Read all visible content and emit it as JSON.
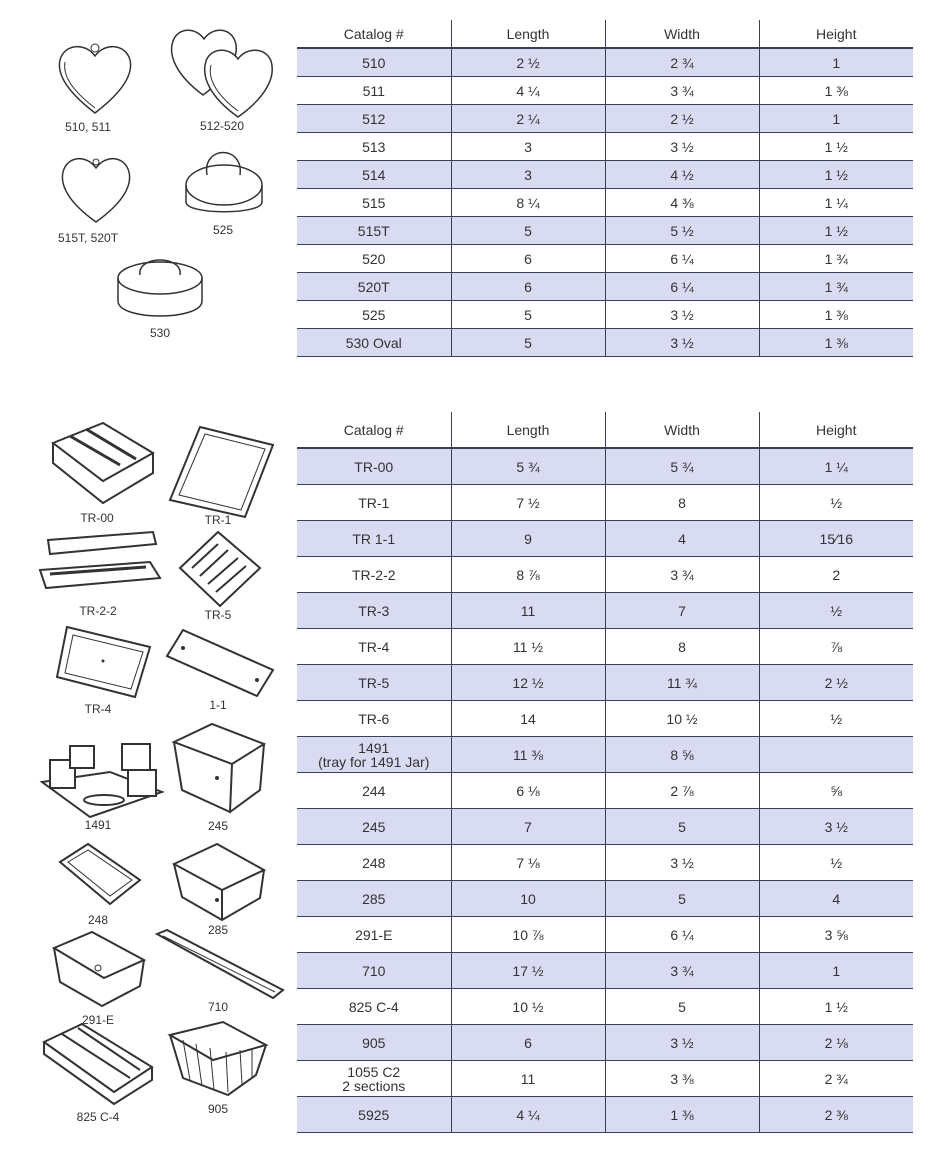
{
  "table1": {
    "headers": [
      "Catalog #",
      "Length",
      "Width",
      "Height"
    ],
    "rows": [
      [
        "510",
        "2 ½",
        "2 ¾",
        "1"
      ],
      [
        "511",
        "4 ¼",
        "3 ¾",
        "1 ⅜"
      ],
      [
        "512",
        "2 ¼",
        "2 ½",
        "1"
      ],
      [
        "513",
        "3",
        "3 ½",
        "1 ½"
      ],
      [
        "514",
        "3",
        "4 ½",
        "1 ½"
      ],
      [
        "515",
        "8 ¼",
        "4 ⅜",
        "1 ¼"
      ],
      [
        "515T",
        "5",
        "5 ½",
        "1 ½"
      ],
      [
        "520",
        "6",
        "6 ¼",
        "1 ¾"
      ],
      [
        "520T",
        "6",
        "6 ¼",
        "1 ¾"
      ],
      [
        "525",
        "5",
        "3 ½",
        "1 ⅜"
      ],
      [
        "530 Oval",
        "5",
        "3 ½",
        "1 ⅜"
      ]
    ]
  },
  "table2": {
    "headers": [
      "Catalog #",
      "Length",
      "Width",
      "Height"
    ],
    "rows": [
      [
        "TR-00",
        "5 ¾",
        "5 ¾",
        "1 ¼"
      ],
      [
        "TR-1",
        "7 ½",
        "8",
        "½"
      ],
      [
        "TR 1-1",
        "9",
        "4",
        "15⁄16"
      ],
      [
        "TR-2-2",
        "8 ⅞",
        "3 ¾",
        "2"
      ],
      [
        "TR-3",
        "11",
        "7",
        "½"
      ],
      [
        "TR-4",
        "11 ½",
        "8",
        "⅞"
      ],
      [
        "TR-5",
        "12 ½",
        "11 ¾",
        "2 ½"
      ],
      [
        "TR-6",
        "14",
        "10 ½",
        "½"
      ],
      [
        "1491\n(tray for 1491 Jar)",
        "11 ⅜",
        "8 ⅝",
        ""
      ],
      [
        "244",
        "6 ⅛",
        "2 ⅞",
        "⅝"
      ],
      [
        "245",
        "7",
        "5",
        "3 ½"
      ],
      [
        "248",
        "7 ⅛",
        "3 ½",
        "½"
      ],
      [
        "285",
        "10",
        "5",
        "4"
      ],
      [
        "291-E",
        "10 ⅞",
        "6 ¼",
        "3 ⅝"
      ],
      [
        "710",
        "17 ½",
        "3 ¾",
        "1"
      ],
      [
        "825 C-4",
        "10 ½",
        "5",
        "1 ½"
      ],
      [
        "905",
        "6",
        "3 ½",
        "2 ⅛"
      ],
      [
        "1055 C2\n2 sections",
        "11",
        "3 ⅜",
        "2 ¾"
      ],
      [
        "5925",
        "4 ¼",
        "1 ⅜",
        "2 ⅜"
      ]
    ]
  },
  "illustrations_top": {
    "labels": [
      "510, 511",
      "512-520",
      "515T, 520T",
      "525",
      "530"
    ]
  },
  "illustrations_bottom": {
    "labels": [
      "TR-00",
      "TR-1",
      "TR-2-2",
      "TR-5",
      "TR-4",
      "1-1",
      "1491",
      "245",
      "248",
      "285",
      "291-E",
      "710",
      "825 C-4",
      "905"
    ]
  },
  "colors": {
    "row_shade": "#d9dbf3",
    "rule": "#3a3d5c"
  }
}
